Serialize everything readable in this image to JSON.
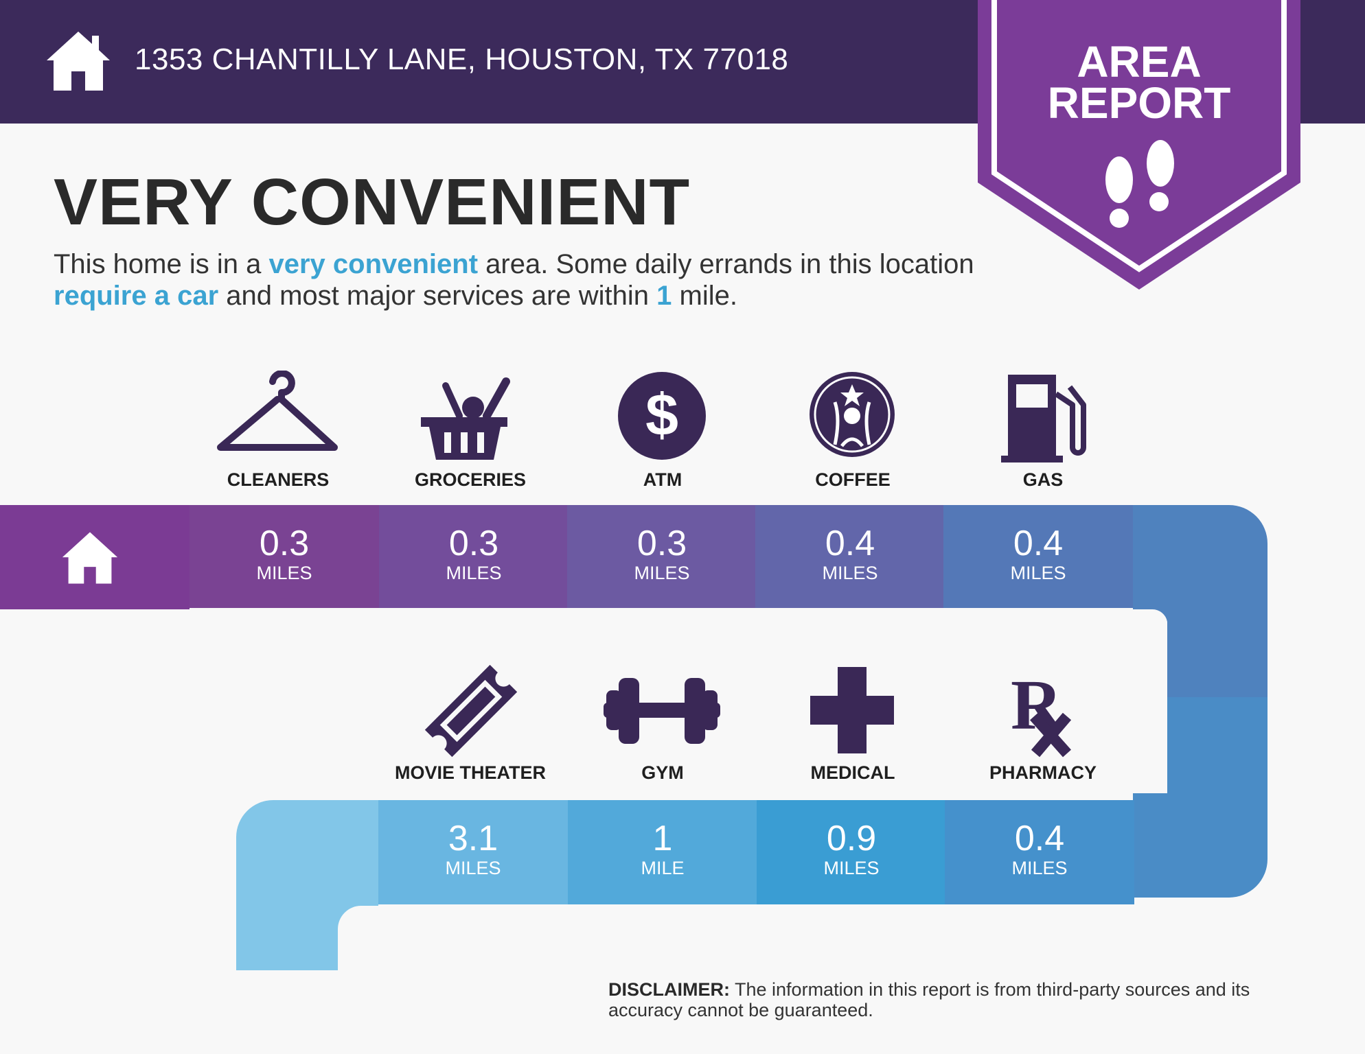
{
  "header": {
    "address": "1353 CHANTILLY LANE, HOUSTON, TX 77018",
    "background_color": "#3c2a5b"
  },
  "badge": {
    "line1": "AREA",
    "line2": "REPORT",
    "color": "#7b3c98"
  },
  "headline": "VERY CONVENIENT",
  "description": {
    "part1": "This home is in a ",
    "highlight1": "very convenient",
    "part2": " area. Some daily errands in this location ",
    "highlight2": "require a car",
    "part3": " and most major services are within ",
    "highlight3": "1",
    "part4": " mile.",
    "highlight_color": "#3ba3d2"
  },
  "row1": [
    {
      "label": "CLEANERS",
      "icon": "hanger-icon",
      "value": "0.3",
      "unit": "MILES",
      "color": "#7a4393"
    },
    {
      "label": "GROCERIES",
      "icon": "basket-icon",
      "value": "0.3",
      "unit": "MILES",
      "color": "#734d9b"
    },
    {
      "label": "ATM",
      "icon": "dollar-icon",
      "value": "0.3",
      "unit": "MILES",
      "color": "#6c5aa2"
    },
    {
      "label": "COFFEE",
      "icon": "coffee-logo-icon",
      "value": "0.4",
      "unit": "MILES",
      "color": "#6266aa"
    },
    {
      "label": "GAS",
      "icon": "gas-pump-icon",
      "value": "0.4",
      "unit": "MILES",
      "color": "#5478b7"
    }
  ],
  "row2": [
    {
      "label": "MOVIE THEATER",
      "icon": "ticket-icon",
      "value": "3.1",
      "unit": "MILES",
      "color": "#69b6e1"
    },
    {
      "label": "GYM",
      "icon": "dumbbell-icon",
      "value": "1",
      "unit": "MILE",
      "color": "#52a9da"
    },
    {
      "label": "MEDICAL",
      "icon": "medical-cross-icon",
      "value": "0.9",
      "unit": "MILES",
      "color": "#3a9dd3"
    },
    {
      "label": "PHARMACY",
      "icon": "rx-icon",
      "value": "0.4",
      "unit": "MILES",
      "color": "#4591cc"
    }
  ],
  "disclaimer": {
    "label": "DISCLAIMER:",
    "text": " The information in this report is from third-party sources and its accuracy cannot be guaranteed."
  }
}
